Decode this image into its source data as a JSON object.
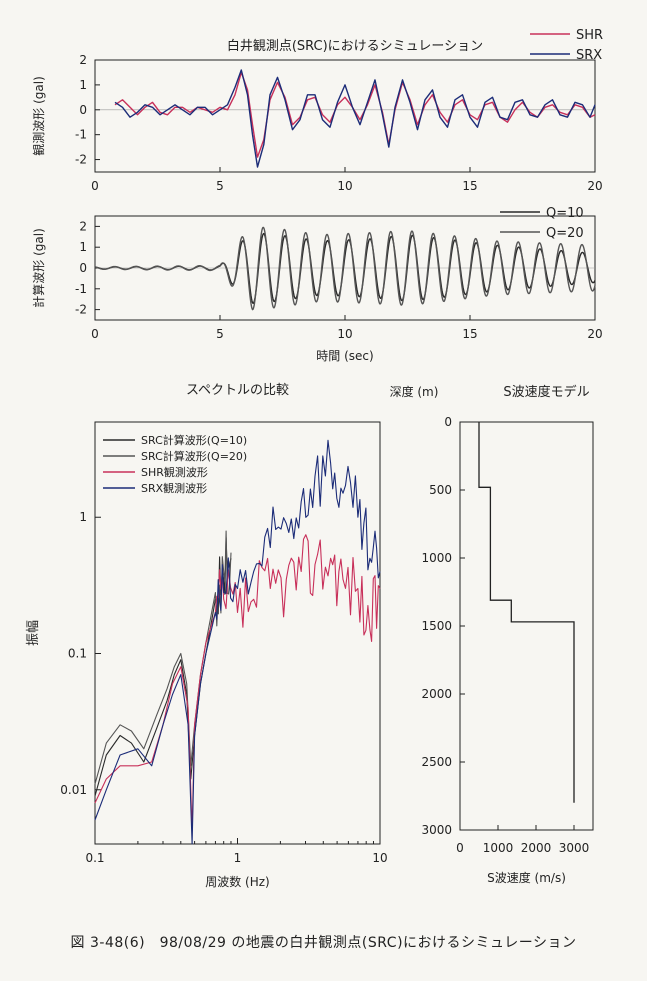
{
  "caption": "図 3-48(6)　98/08/29 の地震の白井観測点(SRC)におけるシミュレーション",
  "colors": {
    "shr": "#c8305a",
    "srx": "#1c2c78",
    "calc": "#2a2a2a",
    "calc2": "#555555",
    "axis": "#222222"
  },
  "chart_data": [
    {
      "id": "observed",
      "type": "line",
      "title": "白井観測点(SRC)におけるシミュレーション",
      "ylabel": "観測波形 (gal)",
      "xlabel": "",
      "xlim": [
        0,
        20
      ],
      "ylim": [
        -2.5,
        2
      ],
      "xticks": [
        "0",
        "5",
        "10",
        "15",
        "20"
      ],
      "yticks": [
        "2",
        "1",
        "0",
        "-1",
        "-2"
      ],
      "legend": "top-right",
      "series": [
        {
          "name": "SHR",
          "color": "#c8305a",
          "x": [
            0.8,
            1.1,
            1.4,
            1.7,
            2.0,
            2.3,
            2.6,
            2.9,
            3.2,
            3.5,
            3.8,
            4.1,
            4.4,
            4.7,
            5.0,
            5.3,
            5.6,
            5.85,
            6.1,
            6.3,
            6.5,
            6.75,
            7.0,
            7.3,
            7.6,
            7.9,
            8.2,
            8.5,
            8.8,
            9.1,
            9.4,
            9.7,
            10.0,
            10.3,
            10.6,
            10.9,
            11.2,
            11.5,
            11.75,
            12.0,
            12.3,
            12.6,
            12.9,
            13.2,
            13.5,
            13.8,
            14.1,
            14.4,
            14.7,
            15.0,
            15.3,
            15.6,
            15.9,
            16.2,
            16.5,
            16.8,
            17.1,
            17.4,
            17.7,
            18.0,
            18.3,
            18.6,
            18.9,
            19.2,
            19.5,
            19.8,
            20.0
          ],
          "y": [
            0.2,
            0.4,
            0.1,
            -0.2,
            0.1,
            0.3,
            -0.1,
            -0.2,
            0.1,
            0.1,
            -0.1,
            0.1,
            0.0,
            -0.1,
            0.1,
            0.0,
            0.6,
            1.5,
            0.8,
            -0.6,
            -1.9,
            -1.2,
            0.4,
            1.1,
            0.5,
            -0.6,
            -0.3,
            0.4,
            0.5,
            -0.2,
            -0.5,
            0.2,
            0.5,
            0.1,
            -0.4,
            0.2,
            1.0,
            -0.1,
            -1.4,
            0.0,
            1.1,
            0.4,
            -0.6,
            0.2,
            0.6,
            -0.1,
            -0.5,
            0.2,
            0.4,
            -0.2,
            -0.4,
            0.2,
            0.3,
            -0.3,
            -0.5,
            0.0,
            0.3,
            -0.1,
            -0.3,
            0.1,
            0.2,
            -0.1,
            -0.2,
            0.2,
            0.1,
            -0.3,
            -0.2
          ]
        },
        {
          "name": "SRX",
          "color": "#1c2c78",
          "x": [
            0.8,
            1.1,
            1.4,
            1.7,
            2.0,
            2.3,
            2.6,
            2.9,
            3.2,
            3.5,
            3.8,
            4.1,
            4.4,
            4.7,
            5.0,
            5.3,
            5.6,
            5.85,
            6.1,
            6.3,
            6.5,
            6.75,
            7.0,
            7.3,
            7.6,
            7.9,
            8.2,
            8.5,
            8.8,
            9.1,
            9.4,
            9.7,
            10.0,
            10.3,
            10.6,
            10.9,
            11.2,
            11.5,
            11.75,
            12.0,
            12.3,
            12.6,
            12.9,
            13.2,
            13.5,
            13.8,
            14.1,
            14.4,
            14.7,
            15.0,
            15.3,
            15.6,
            15.9,
            16.2,
            16.5,
            16.8,
            17.1,
            17.4,
            17.7,
            18.0,
            18.3,
            18.6,
            18.9,
            19.2,
            19.5,
            19.8,
            20.0
          ],
          "y": [
            0.3,
            0.1,
            -0.3,
            -0.1,
            0.2,
            0.1,
            -0.2,
            0.0,
            0.2,
            0.0,
            -0.2,
            0.1,
            0.1,
            -0.2,
            0.0,
            0.2,
            0.9,
            1.6,
            0.6,
            -1.0,
            -2.3,
            -1.4,
            0.6,
            1.3,
            0.4,
            -0.8,
            -0.4,
            0.6,
            0.6,
            -0.4,
            -0.7,
            0.3,
            1.0,
            0.1,
            -0.6,
            0.3,
            1.2,
            -0.2,
            -1.5,
            0.1,
            1.2,
            0.3,
            -0.8,
            0.4,
            0.8,
            -0.3,
            -0.7,
            0.4,
            0.6,
            -0.3,
            -0.7,
            0.3,
            0.5,
            -0.3,
            -0.4,
            0.3,
            0.4,
            -0.2,
            -0.3,
            0.2,
            0.4,
            -0.2,
            -0.3,
            0.3,
            0.2,
            -0.3,
            0.2
          ]
        }
      ]
    },
    {
      "id": "computed",
      "type": "line",
      "title": "",
      "ylabel": "計算波形 (gal)",
      "xlabel": "時間 (sec)",
      "xlim": [
        0,
        20
      ],
      "ylim": [
        -2.5,
        2.5
      ],
      "xticks": [
        "0",
        "5",
        "10",
        "15",
        "20"
      ],
      "yticks": [
        "2",
        "1",
        "0",
        "-1",
        "-2"
      ],
      "legend": "top-right",
      "series": [
        {
          "name": "Q=10",
          "color": "#2a2a2a",
          "style": "wave",
          "amplitude": [
            [
              0,
              0.05
            ],
            [
              5,
              0.1
            ],
            [
              5.8,
              1.2
            ],
            [
              6.3,
              1.7
            ],
            [
              7.3,
              1.6
            ],
            [
              9,
              1.3
            ],
            [
              11,
              1.4
            ],
            [
              12.5,
              1.6
            ],
            [
              14,
              1.4
            ],
            [
              16,
              1.1
            ],
            [
              18,
              0.9
            ],
            [
              20,
              0.7
            ]
          ],
          "period": 0.85,
          "phase": 0.0
        },
        {
          "name": "Q=20",
          "color": "#555555",
          "style": "wave",
          "amplitude": [
            [
              0,
              0.06
            ],
            [
              5,
              0.12
            ],
            [
              5.8,
              1.4
            ],
            [
              6.3,
              2.0
            ],
            [
              7.3,
              1.9
            ],
            [
              9,
              1.6
            ],
            [
              11,
              1.7
            ],
            [
              12.5,
              1.8
            ],
            [
              14,
              1.6
            ],
            [
              16,
              1.3
            ],
            [
              18,
              1.2
            ],
            [
              20,
              1.1
            ]
          ],
          "period": 0.85,
          "phase": 0.15
        }
      ]
    },
    {
      "id": "spectrum",
      "type": "line",
      "title": "スペクトルの比較",
      "xlabel": "周波数 (Hz)",
      "ylabel": "振幅",
      "xscale": "log",
      "yscale": "log",
      "xlim": [
        0.1,
        10
      ],
      "ylim": [
        0.004,
        5
      ],
      "xticks": [
        "0.1",
        "1",
        "10"
      ],
      "yticks": [
        "1",
        "0.1",
        "0.01"
      ],
      "legend": "top-left",
      "series": [
        {
          "name": "SRC計算波形(Q=10)",
          "color": "#2a2a2a",
          "x": [
            0.1,
            0.12,
            0.15,
            0.18,
            0.22,
            0.27,
            0.32,
            0.36,
            0.4,
            0.44,
            0.47,
            0.5,
            0.55,
            0.6,
            0.7,
            0.8,
            0.9
          ],
          "y": [
            0.009,
            0.018,
            0.025,
            0.022,
            0.016,
            0.028,
            0.045,
            0.07,
            0.09,
            0.05,
            0.012,
            0.025,
            0.06,
            0.1,
            0.25,
            0.35,
            0.5
          ]
        },
        {
          "name": "SRC計算波形(Q=20)",
          "color": "#555555",
          "x": [
            0.1,
            0.12,
            0.15,
            0.18,
            0.22,
            0.27,
            0.32,
            0.36,
            0.4,
            0.44,
            0.47,
            0.5,
            0.55,
            0.6,
            0.7,
            0.8,
            0.9
          ],
          "y": [
            0.011,
            0.022,
            0.03,
            0.027,
            0.02,
            0.035,
            0.055,
            0.08,
            0.1,
            0.06,
            0.015,
            0.03,
            0.07,
            0.12,
            0.28,
            0.4,
            0.55
          ]
        },
        {
          "name": "SHR観測波形",
          "color": "#c8305a",
          "x": [
            0.1,
            0.12,
            0.15,
            0.2,
            0.25,
            0.3,
            0.35,
            0.4,
            0.45,
            0.48,
            0.5,
            0.55,
            0.6,
            0.7,
            0.8,
            1.0,
            1.3,
            1.7,
            2.2,
            2.8,
            3.5,
            4.5,
            5.5,
            7.0,
            8.5,
            10.0
          ],
          "y": [
            0.008,
            0.012,
            0.015,
            0.015,
            0.016,
            0.03,
            0.06,
            0.08,
            0.04,
            0.005,
            0.03,
            0.07,
            0.12,
            0.2,
            0.25,
            0.2,
            0.25,
            0.3,
            0.35,
            0.4,
            0.45,
            0.5,
            0.35,
            0.3,
            0.15,
            0.3
          ]
        },
        {
          "name": "SRX観測波形",
          "color": "#1c2c78",
          "x": [
            0.1,
            0.12,
            0.15,
            0.2,
            0.25,
            0.3,
            0.35,
            0.4,
            0.45,
            0.48,
            0.5,
            0.55,
            0.6,
            0.7,
            0.8,
            1.0,
            1.3,
            1.7,
            2.2,
            2.8,
            3.5,
            4.5,
            5.5,
            7.0,
            8.5,
            10.0
          ],
          "y": [
            0.006,
            0.01,
            0.018,
            0.02,
            0.015,
            0.03,
            0.05,
            0.07,
            0.03,
            0.004,
            0.025,
            0.06,
            0.1,
            0.2,
            0.28,
            0.3,
            0.4,
            0.6,
            0.9,
            1.3,
            2.0,
            2.5,
            1.5,
            1.0,
            0.5,
            0.4
          ]
        }
      ]
    },
    {
      "id": "velocity_model",
      "type": "line",
      "title": "S波速度モデル",
      "xlabel": "S波速度 (m/s)",
      "ylabel": "深度 (m)",
      "xlim": [
        0,
        3500
      ],
      "ylim": [
        0,
        3000
      ],
      "yinverted": true,
      "xticks": [
        "0",
        "1000",
        "2000",
        "3000"
      ],
      "yticks": [
        "0",
        "500",
        "1000",
        "1500",
        "2000",
        "2500",
        "3000"
      ],
      "series": [
        {
          "name": "",
          "color": "#222222",
          "x": [
            500,
            500,
            800,
            800,
            1350,
            1350,
            3000,
            3000
          ],
          "y": [
            0,
            480,
            480,
            1310,
            1310,
            1470,
            1470,
            2800
          ]
        }
      ]
    }
  ]
}
